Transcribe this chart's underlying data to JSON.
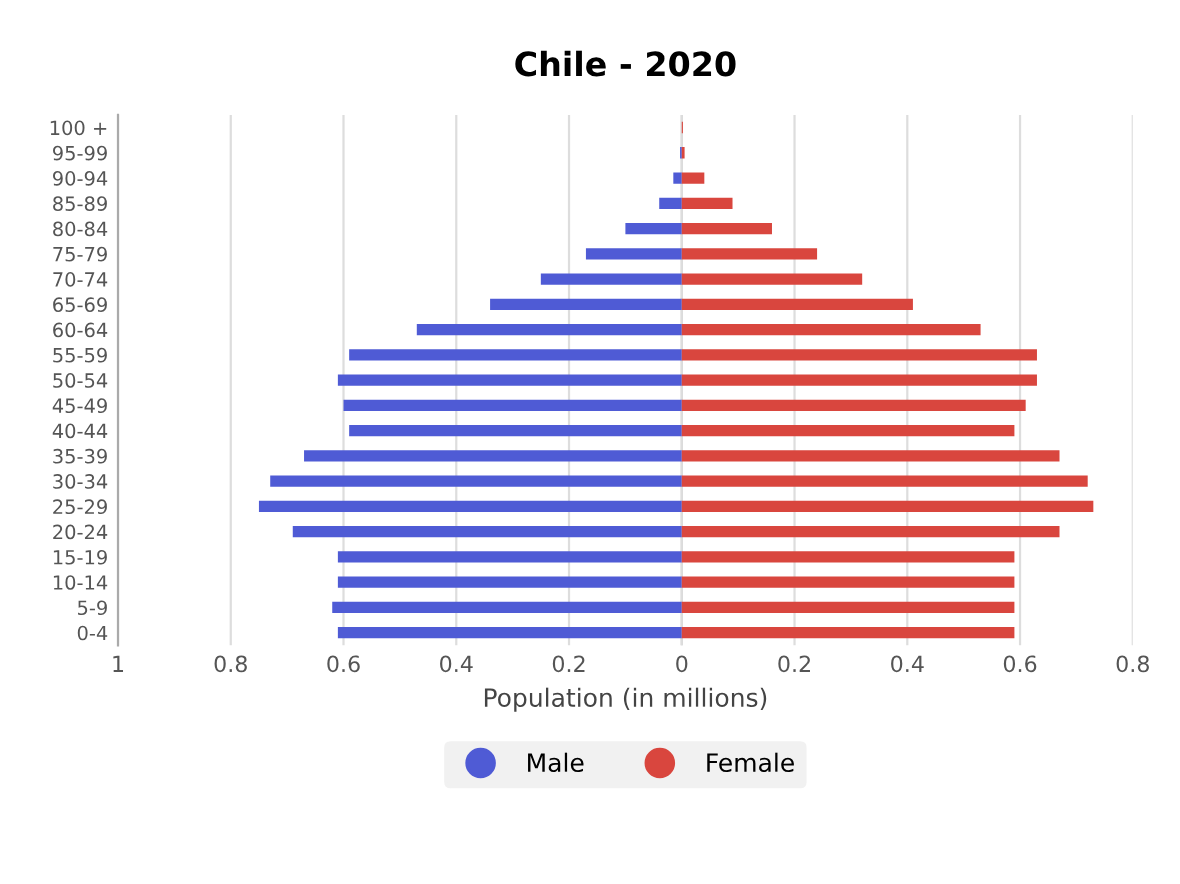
{
  "chart_data": {
    "type": "bar",
    "orientation": "horizontal",
    "title": "Chile - 2020",
    "xlabel": "Population (in millions)",
    "categories": [
      "100 +",
      "95-99",
      "90-94",
      "85-89",
      "80-84",
      "75-79",
      "70-74",
      "65-69",
      "60-64",
      "55-59",
      "50-54",
      "45-49",
      "40-44",
      "35-39",
      "30-34",
      "25-29",
      "20-24",
      "15-19",
      "10-14",
      "5-9",
      "0-4"
    ],
    "series": [
      {
        "name": "Male",
        "color": "#4f5bd5",
        "values": [
          0,
          -0.003,
          -0.015,
          -0.04,
          -0.1,
          -0.17,
          -0.25,
          -0.34,
          -0.47,
          -0.59,
          -0.61,
          -0.6,
          -0.59,
          -0.67,
          -0.73,
          -0.75,
          -0.69,
          -0.61,
          -0.61,
          -0.62,
          -0.61
        ]
      },
      {
        "name": "Female",
        "color": "#d9463e",
        "values": [
          0.002,
          0.005,
          0.04,
          0.09,
          0.16,
          0.24,
          0.32,
          0.41,
          0.53,
          0.63,
          0.63,
          0.61,
          0.59,
          0.67,
          0.72,
          0.73,
          0.67,
          0.59,
          0.59,
          0.59,
          0.59
        ]
      }
    ],
    "xlim": [
      -1,
      0.8
    ],
    "stacked": true,
    "xticks": [
      {
        "value": -1,
        "label": "1"
      },
      {
        "value": -0.8,
        "label": "0.8"
      },
      {
        "value": -0.6,
        "label": "0.6"
      },
      {
        "value": -0.4,
        "label": "0.4"
      },
      {
        "value": -0.2,
        "label": "0.2"
      },
      0,
      0.2,
      0.4,
      0.6,
      0.8
    ],
    "grid": "x",
    "legend": "bottom",
    "marker": "circle"
  }
}
